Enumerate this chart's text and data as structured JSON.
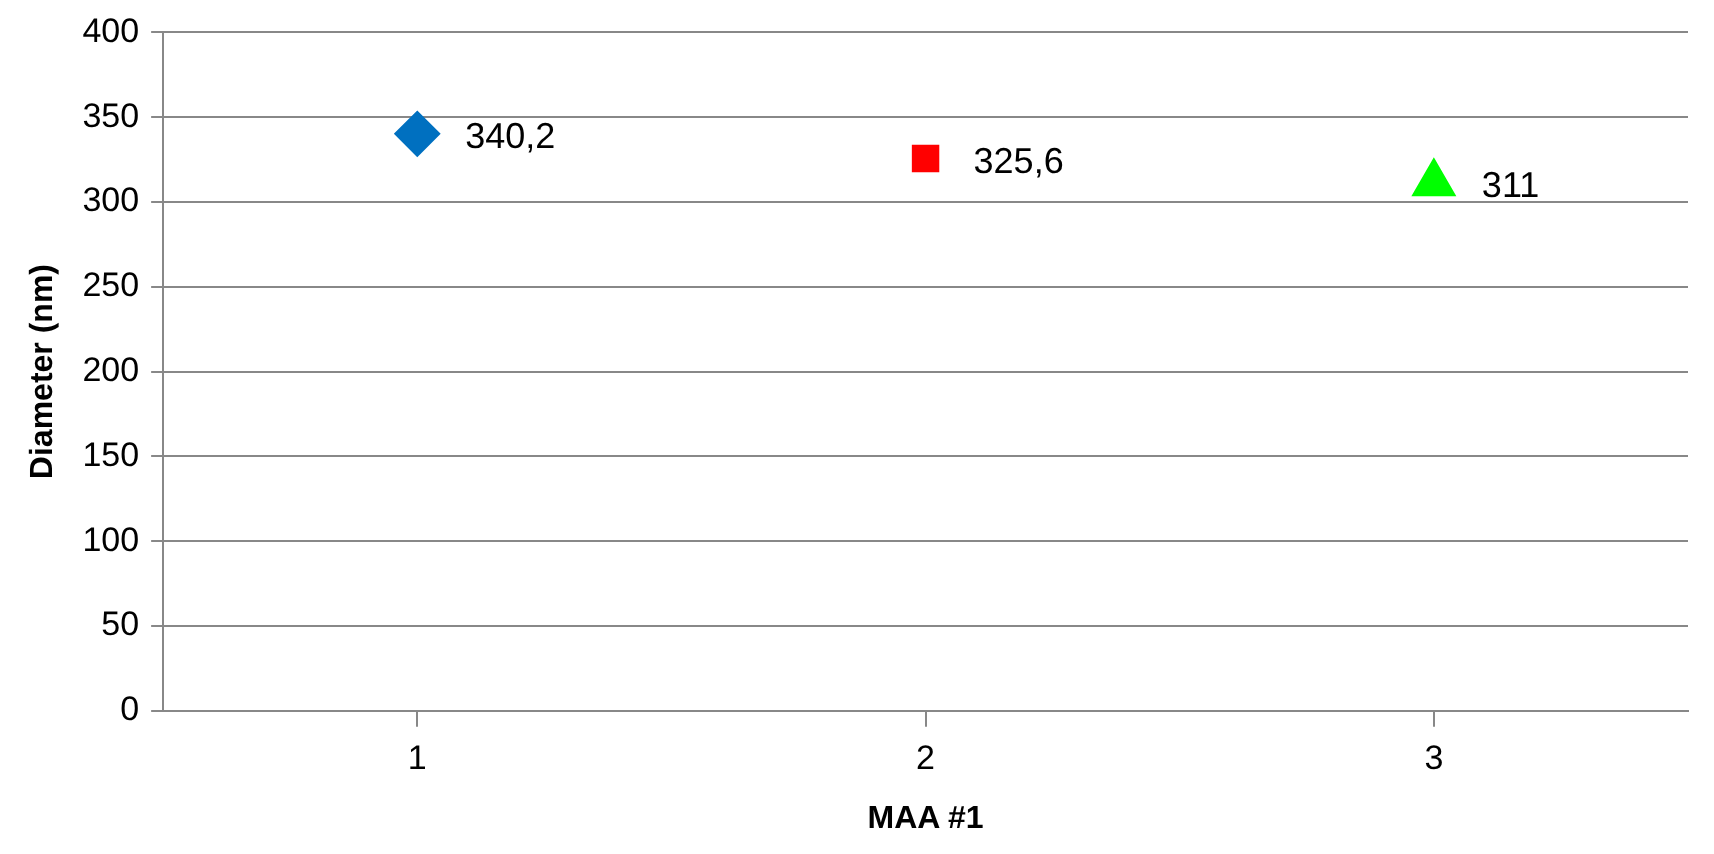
{
  "chart_data": {
    "type": "scatter",
    "xlabel": "MAA #1",
    "ylabel": "Diameter (nm)",
    "categories": [
      "1",
      "2",
      "3"
    ],
    "series": [
      {
        "color": "#0070c0",
        "marker": "diamond",
        "values": [
          340.2,
          null,
          null
        ],
        "value_labels": [
          "340,2",
          null,
          null
        ]
      },
      {
        "color": "#ff0000",
        "marker": "square",
        "values": [
          null,
          325.6,
          null
        ],
        "value_labels": [
          null,
          "325,6",
          null
        ]
      },
      {
        "color": "#00ff00",
        "marker": "triangle",
        "values": [
          null,
          null,
          311
        ],
        "value_labels": [
          null,
          null,
          "311"
        ]
      }
    ],
    "ylim": [
      0,
      400
    ],
    "yticks": [
      0,
      50,
      100,
      150,
      200,
      250,
      300,
      350,
      400
    ],
    "grid": "y",
    "legend": false
  }
}
